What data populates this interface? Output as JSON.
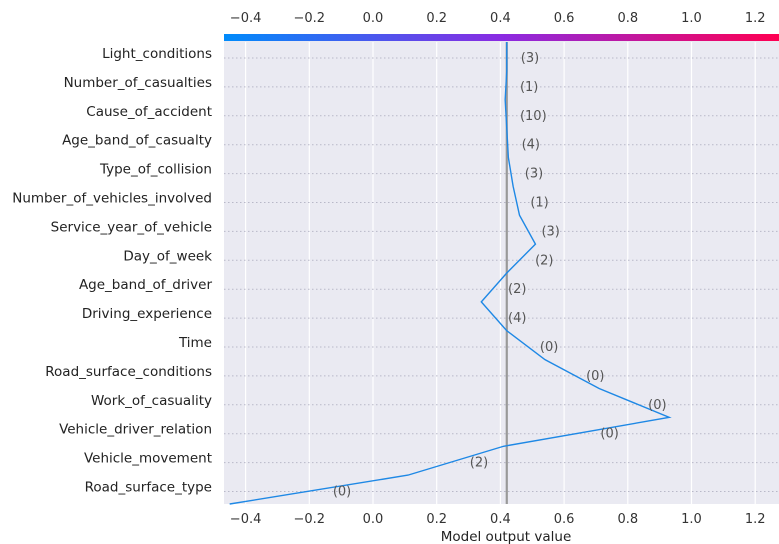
{
  "chart_data": {
    "type": "line",
    "xlabel": "Model output value",
    "xlim": [
      -0.45,
      1.28
    ],
    "x_ticks": [
      "−0.4",
      "−0.2",
      "0.0",
      "0.2",
      "0.4",
      "0.6",
      "0.8",
      "1.0",
      "1.2"
    ],
    "x_tick_values": [
      -0.4,
      -0.2,
      0.0,
      0.2,
      0.4,
      0.6,
      0.8,
      1.0,
      1.2
    ],
    "base_value": 0.42,
    "grid": true,
    "colors": {
      "line": "#1e88e5",
      "gradient_start": "#008bfb",
      "gradient_mid": "#8a2be2",
      "gradient_end": "#ff0052",
      "plot_bg": "#eaeaf2",
      "base_line": "#999999"
    },
    "features": [
      {
        "name": "Light_conditions",
        "value_label": "(3)"
      },
      {
        "name": "Number_of_casualties",
        "value_label": "(1)"
      },
      {
        "name": "Cause_of_accident",
        "value_label": "(10)"
      },
      {
        "name": "Age_band_of_casualty",
        "value_label": "(4)"
      },
      {
        "name": "Type_of_collision",
        "value_label": "(3)"
      },
      {
        "name": "Number_of_vehicles_involved",
        "value_label": "(1)"
      },
      {
        "name": "Service_year_of_vehicle",
        "value_label": "(3)"
      },
      {
        "name": "Day_of_week",
        "value_label": "(2)"
      },
      {
        "name": "Age_band_of_driver",
        "value_label": "(2)"
      },
      {
        "name": "Driving_experience",
        "value_label": "(4)"
      },
      {
        "name": "Time",
        "value_label": "(0)"
      },
      {
        "name": "Road_surface_conditions",
        "value_label": "(0)"
      },
      {
        "name": "Work_of_casuality",
        "value_label": "(0)"
      },
      {
        "name": "Vehicle_driver_relation",
        "value_label": "(0)"
      },
      {
        "name": "Vehicle_movement",
        "value_label": "(2)"
      },
      {
        "name": "Road_surface_type",
        "value_label": "(0)"
      }
    ],
    "path_x": [
      -0.45,
      0.11,
      0.41,
      0.93,
      0.71,
      0.54,
      0.42,
      0.34,
      0.42,
      0.51,
      0.46,
      0.44,
      0.425,
      0.42,
      0.415,
      0.42,
      0.42
    ]
  }
}
